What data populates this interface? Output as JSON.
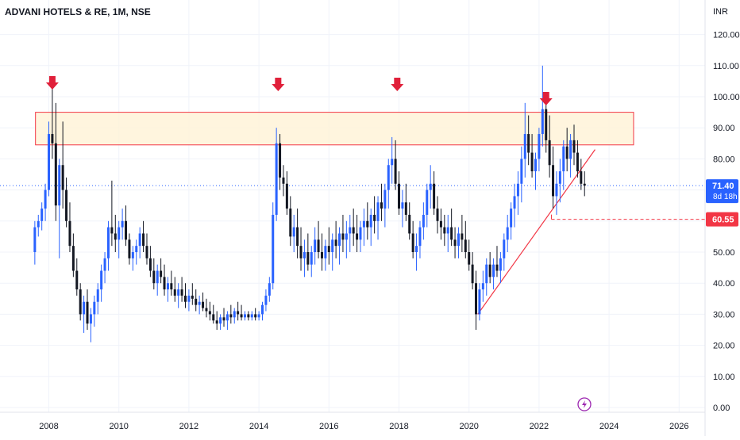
{
  "header": {
    "title": "ADVANI HOTELS & RE, 1M, NSE"
  },
  "chart_data": {
    "type": "candlestick",
    "title": "ADVANI HOTELS & RE, 1M, NSE",
    "currency_label": "INR",
    "ylim": [
      0,
      125
    ],
    "y_ticks": [
      "0.00",
      "10.00",
      "20.00",
      "30.00",
      "40.00",
      "50.00",
      "60.00",
      "70.00",
      "80.00",
      "90.00",
      "100.00",
      "110.00",
      "120.00"
    ],
    "x_ticks": [
      "2008",
      "2010",
      "2012",
      "2014",
      "2016",
      "2018",
      "2020",
      "2022",
      "2024",
      "2026"
    ],
    "grid": true,
    "colors": {
      "up": "#2962ff",
      "down": "#131722",
      "resistance": "#f23645",
      "zone_fill": "#fff3d6",
      "price_tag": "#2962ff",
      "level_tag": "#f23645",
      "marker_icon": "#9c27b0"
    },
    "current_price": {
      "value": 71.4,
      "label": "71.40",
      "countdown": "8d 18h"
    },
    "level_marker": {
      "value": 60.55,
      "label": "60.55",
      "start_date": 2022.4
    },
    "resistance_zone": {
      "from": 2007.8,
      "to": 2024.7,
      "low": 84.5,
      "high": 95
    },
    "trendline": {
      "x1": 2020.25,
      "y1": 30,
      "x2": 2023.6,
      "y2": 83
    },
    "arrows_at": [
      2008.1,
      2014.55,
      2017.95,
      2022.2
    ],
    "candles": [
      [
        2007.6,
        50,
        60,
        46,
        58
      ],
      [
        2007.7,
        58,
        62,
        55,
        60
      ],
      [
        2007.8,
        60,
        66,
        57,
        64
      ],
      [
        2007.9,
        64,
        72,
        60,
        70
      ],
      [
        2008.0,
        70,
        92,
        68,
        88
      ],
      [
        2008.1,
        88,
        104,
        80,
        85
      ],
      [
        2008.2,
        85,
        98,
        60,
        65
      ],
      [
        2008.3,
        65,
        80,
        48,
        78
      ],
      [
        2008.4,
        78,
        92,
        64,
        70
      ],
      [
        2008.5,
        70,
        74,
        58,
        60
      ],
      [
        2008.6,
        60,
        66,
        50,
        52
      ],
      [
        2008.7,
        52,
        56,
        42,
        44
      ],
      [
        2008.8,
        44,
        48,
        36,
        38
      ],
      [
        2008.9,
        38,
        40,
        28,
        30
      ],
      [
        2009.0,
        30,
        36,
        24,
        34
      ],
      [
        2009.1,
        34,
        38,
        25,
        27
      ],
      [
        2009.2,
        27,
        32,
        21,
        30
      ],
      [
        2009.3,
        30,
        36,
        26,
        34
      ],
      [
        2009.4,
        34,
        40,
        30,
        38
      ],
      [
        2009.5,
        38,
        46,
        34,
        44
      ],
      [
        2009.6,
        44,
        50,
        40,
        48
      ],
      [
        2009.7,
        48,
        60,
        44,
        58
      ],
      [
        2009.8,
        58,
        73,
        52,
        56
      ],
      [
        2009.9,
        56,
        62,
        50,
        54
      ],
      [
        2010.0,
        54,
        60,
        48,
        58
      ],
      [
        2010.1,
        58,
        64,
        54,
        60
      ],
      [
        2010.2,
        60,
        65,
        52,
        54
      ],
      [
        2010.3,
        54,
        56,
        46,
        48
      ],
      [
        2010.4,
        48,
        52,
        44,
        50
      ],
      [
        2010.5,
        50,
        54,
        46,
        52
      ],
      [
        2010.6,
        52,
        58,
        48,
        56
      ],
      [
        2010.7,
        56,
        60,
        50,
        52
      ],
      [
        2010.8,
        52,
        56,
        46,
        48
      ],
      [
        2010.9,
        48,
        52,
        42,
        44
      ],
      [
        2011.0,
        44,
        48,
        38,
        40
      ],
      [
        2011.1,
        40,
        46,
        36,
        44
      ],
      [
        2011.2,
        44,
        48,
        40,
        42
      ],
      [
        2011.3,
        42,
        46,
        36,
        38
      ],
      [
        2011.4,
        38,
        42,
        34,
        40
      ],
      [
        2011.5,
        40,
        44,
        36,
        38
      ],
      [
        2011.6,
        38,
        42,
        34,
        36
      ],
      [
        2011.7,
        36,
        40,
        32,
        38
      ],
      [
        2011.8,
        38,
        42,
        34,
        36
      ],
      [
        2011.9,
        36,
        40,
        32,
        34
      ],
      [
        2012.0,
        34,
        38,
        31,
        36
      ],
      [
        2012.1,
        36,
        40,
        33,
        35
      ],
      [
        2012.2,
        35,
        38,
        31,
        33
      ],
      [
        2012.3,
        33,
        36,
        30,
        34
      ],
      [
        2012.4,
        34,
        37,
        31,
        32
      ],
      [
        2012.5,
        32,
        35,
        29,
        31
      ],
      [
        2012.6,
        31,
        34,
        28,
        30
      ],
      [
        2012.7,
        30,
        33,
        27,
        28
      ],
      [
        2012.8,
        28,
        31,
        25,
        27
      ],
      [
        2012.9,
        27,
        30,
        25,
        29
      ],
      [
        2013.0,
        29,
        32,
        26,
        28
      ],
      [
        2013.1,
        28,
        31,
        25,
        30
      ],
      [
        2013.2,
        30,
        33,
        27,
        29
      ],
      [
        2013.3,
        29,
        32,
        27,
        31
      ],
      [
        2013.4,
        31,
        34,
        28,
        30
      ],
      [
        2013.5,
        30,
        33,
        28,
        29
      ],
      [
        2013.6,
        29,
        31,
        28,
        30
      ],
      [
        2013.7,
        30,
        31,
        28,
        29
      ],
      [
        2013.8,
        29,
        31,
        28,
        30
      ],
      [
        2013.9,
        30,
        32,
        28,
        29
      ],
      [
        2014.0,
        29,
        31,
        28,
        30
      ],
      [
        2014.1,
        30,
        34,
        28,
        33
      ],
      [
        2014.2,
        33,
        38,
        31,
        36
      ],
      [
        2014.3,
        36,
        42,
        34,
        40
      ],
      [
        2014.4,
        40,
        66,
        38,
        62
      ],
      [
        2014.5,
        62,
        90,
        60,
        85
      ],
      [
        2014.6,
        85,
        88,
        70,
        74
      ],
      [
        2014.7,
        74,
        78,
        68,
        72
      ],
      [
        2014.8,
        72,
        76,
        62,
        64
      ],
      [
        2014.9,
        64,
        68,
        52,
        55
      ],
      [
        2015.0,
        55,
        62,
        50,
        58
      ],
      [
        2015.1,
        58,
        64,
        48,
        52
      ],
      [
        2015.2,
        52,
        58,
        44,
        48
      ],
      [
        2015.3,
        48,
        54,
        42,
        50
      ],
      [
        2015.4,
        50,
        56,
        44,
        46
      ],
      [
        2015.5,
        46,
        52,
        42,
        50
      ],
      [
        2015.6,
        50,
        58,
        46,
        54
      ],
      [
        2015.7,
        54,
        60,
        48,
        50
      ],
      [
        2015.8,
        50,
        56,
        44,
        48
      ],
      [
        2015.9,
        48,
        54,
        44,
        52
      ],
      [
        2016.0,
        52,
        58,
        46,
        50
      ],
      [
        2016.1,
        50,
        56,
        44,
        54
      ],
      [
        2016.2,
        54,
        60,
        48,
        52
      ],
      [
        2016.3,
        52,
        58,
        46,
        56
      ],
      [
        2016.4,
        56,
        62,
        50,
        54
      ],
      [
        2016.5,
        54,
        60,
        48,
        56
      ],
      [
        2016.6,
        56,
        62,
        50,
        58
      ],
      [
        2016.7,
        58,
        64,
        52,
        56
      ],
      [
        2016.8,
        56,
        62,
        50,
        54
      ],
      [
        2016.9,
        54,
        60,
        50,
        58
      ],
      [
        2017.0,
        58,
        64,
        52,
        60
      ],
      [
        2017.1,
        60,
        66,
        54,
        58
      ],
      [
        2017.2,
        58,
        64,
        52,
        62
      ],
      [
        2017.3,
        62,
        68,
        56,
        60
      ],
      [
        2017.4,
        60,
        68,
        54,
        66
      ],
      [
        2017.5,
        66,
        72,
        60,
        64
      ],
      [
        2017.6,
        64,
        72,
        58,
        70
      ],
      [
        2017.7,
        70,
        80,
        64,
        78
      ],
      [
        2017.8,
        78,
        87,
        72,
        80
      ],
      [
        2017.9,
        80,
        86,
        70,
        72
      ],
      [
        2018.0,
        72,
        76,
        62,
        64
      ],
      [
        2018.1,
        64,
        70,
        58,
        66
      ],
      [
        2018.2,
        66,
        72,
        60,
        62
      ],
      [
        2018.3,
        62,
        66,
        54,
        56
      ],
      [
        2018.4,
        56,
        60,
        48,
        50
      ],
      [
        2018.5,
        50,
        56,
        44,
        52
      ],
      [
        2018.6,
        52,
        60,
        48,
        58
      ],
      [
        2018.7,
        58,
        66,
        54,
        62
      ],
      [
        2018.8,
        62,
        72,
        58,
        70
      ],
      [
        2018.9,
        70,
        78,
        64,
        72
      ],
      [
        2019.0,
        72,
        76,
        62,
        64
      ],
      [
        2019.1,
        64,
        68,
        56,
        60
      ],
      [
        2019.2,
        60,
        64,
        54,
        58
      ],
      [
        2019.3,
        58,
        62,
        52,
        56
      ],
      [
        2019.4,
        56,
        62,
        50,
        58
      ],
      [
        2019.5,
        58,
        64,
        52,
        54
      ],
      [
        2019.6,
        54,
        58,
        48,
        52
      ],
      [
        2019.7,
        52,
        58,
        48,
        56
      ],
      [
        2019.8,
        56,
        62,
        50,
        54
      ],
      [
        2019.9,
        54,
        60,
        48,
        50
      ],
      [
        2020.0,
        50,
        54,
        44,
        46
      ],
      [
        2020.1,
        46,
        50,
        38,
        40
      ],
      [
        2020.2,
        40,
        44,
        25,
        30
      ],
      [
        2020.3,
        30,
        40,
        28,
        38
      ],
      [
        2020.4,
        38,
        44,
        34,
        40
      ],
      [
        2020.5,
        40,
        48,
        36,
        46
      ],
      [
        2020.6,
        46,
        50,
        40,
        42
      ],
      [
        2020.7,
        42,
        48,
        38,
        46
      ],
      [
        2020.8,
        46,
        52,
        42,
        44
      ],
      [
        2020.9,
        44,
        50,
        40,
        48
      ],
      [
        2021.0,
        48,
        56,
        44,
        54
      ],
      [
        2021.1,
        54,
        62,
        50,
        58
      ],
      [
        2021.2,
        58,
        66,
        54,
        64
      ],
      [
        2021.3,
        64,
        72,
        58,
        68
      ],
      [
        2021.4,
        68,
        76,
        62,
        72
      ],
      [
        2021.5,
        72,
        84,
        66,
        80
      ],
      [
        2021.6,
        80,
        98,
        74,
        88
      ],
      [
        2021.7,
        88,
        94,
        78,
        82
      ],
      [
        2021.8,
        82,
        88,
        74,
        76
      ],
      [
        2021.9,
        76,
        82,
        70,
        80
      ],
      [
        2022.0,
        80,
        90,
        76,
        88
      ],
      [
        2022.1,
        88,
        110,
        84,
        96
      ],
      [
        2022.2,
        96,
        100,
        82,
        86
      ],
      [
        2022.3,
        86,
        94,
        74,
        78
      ],
      [
        2022.4,
        78,
        84,
        64,
        68
      ],
      [
        2022.5,
        68,
        76,
        62,
        72
      ],
      [
        2022.6,
        72,
        80,
        66,
        76
      ],
      [
        2022.7,
        76,
        86,
        70,
        84
      ],
      [
        2022.8,
        84,
        90,
        76,
        80
      ],
      [
        2022.9,
        80,
        88,
        74,
        86
      ],
      [
        2023.0,
        86,
        91,
        78,
        82
      ],
      [
        2023.1,
        82,
        86,
        74,
        76
      ],
      [
        2023.2,
        76,
        80,
        70,
        72
      ],
      [
        2023.3,
        72,
        76,
        68,
        71.4
      ]
    ]
  },
  "toolbar": {
    "flash_icon": "lightning-icon"
  }
}
